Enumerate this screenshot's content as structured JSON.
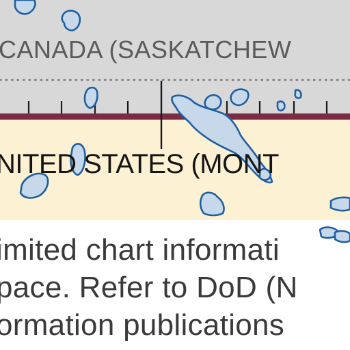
{
  "colors": {
    "canada_fill": "#d8d8d8",
    "us_fill": "#fdf1d4",
    "border_line": "#7b2c44",
    "water_fill": "#c6d8ea",
    "water_stroke": "#1f5fa0"
  },
  "map": {
    "canada_label": "CANADA (SASKATCHEW",
    "us_label": "NITED STATES (MONT"
  },
  "notice": {
    "lines": [
      "imited chart informati",
      "pace. Refer to DoD (N",
      "ormation publications"
    ]
  }
}
